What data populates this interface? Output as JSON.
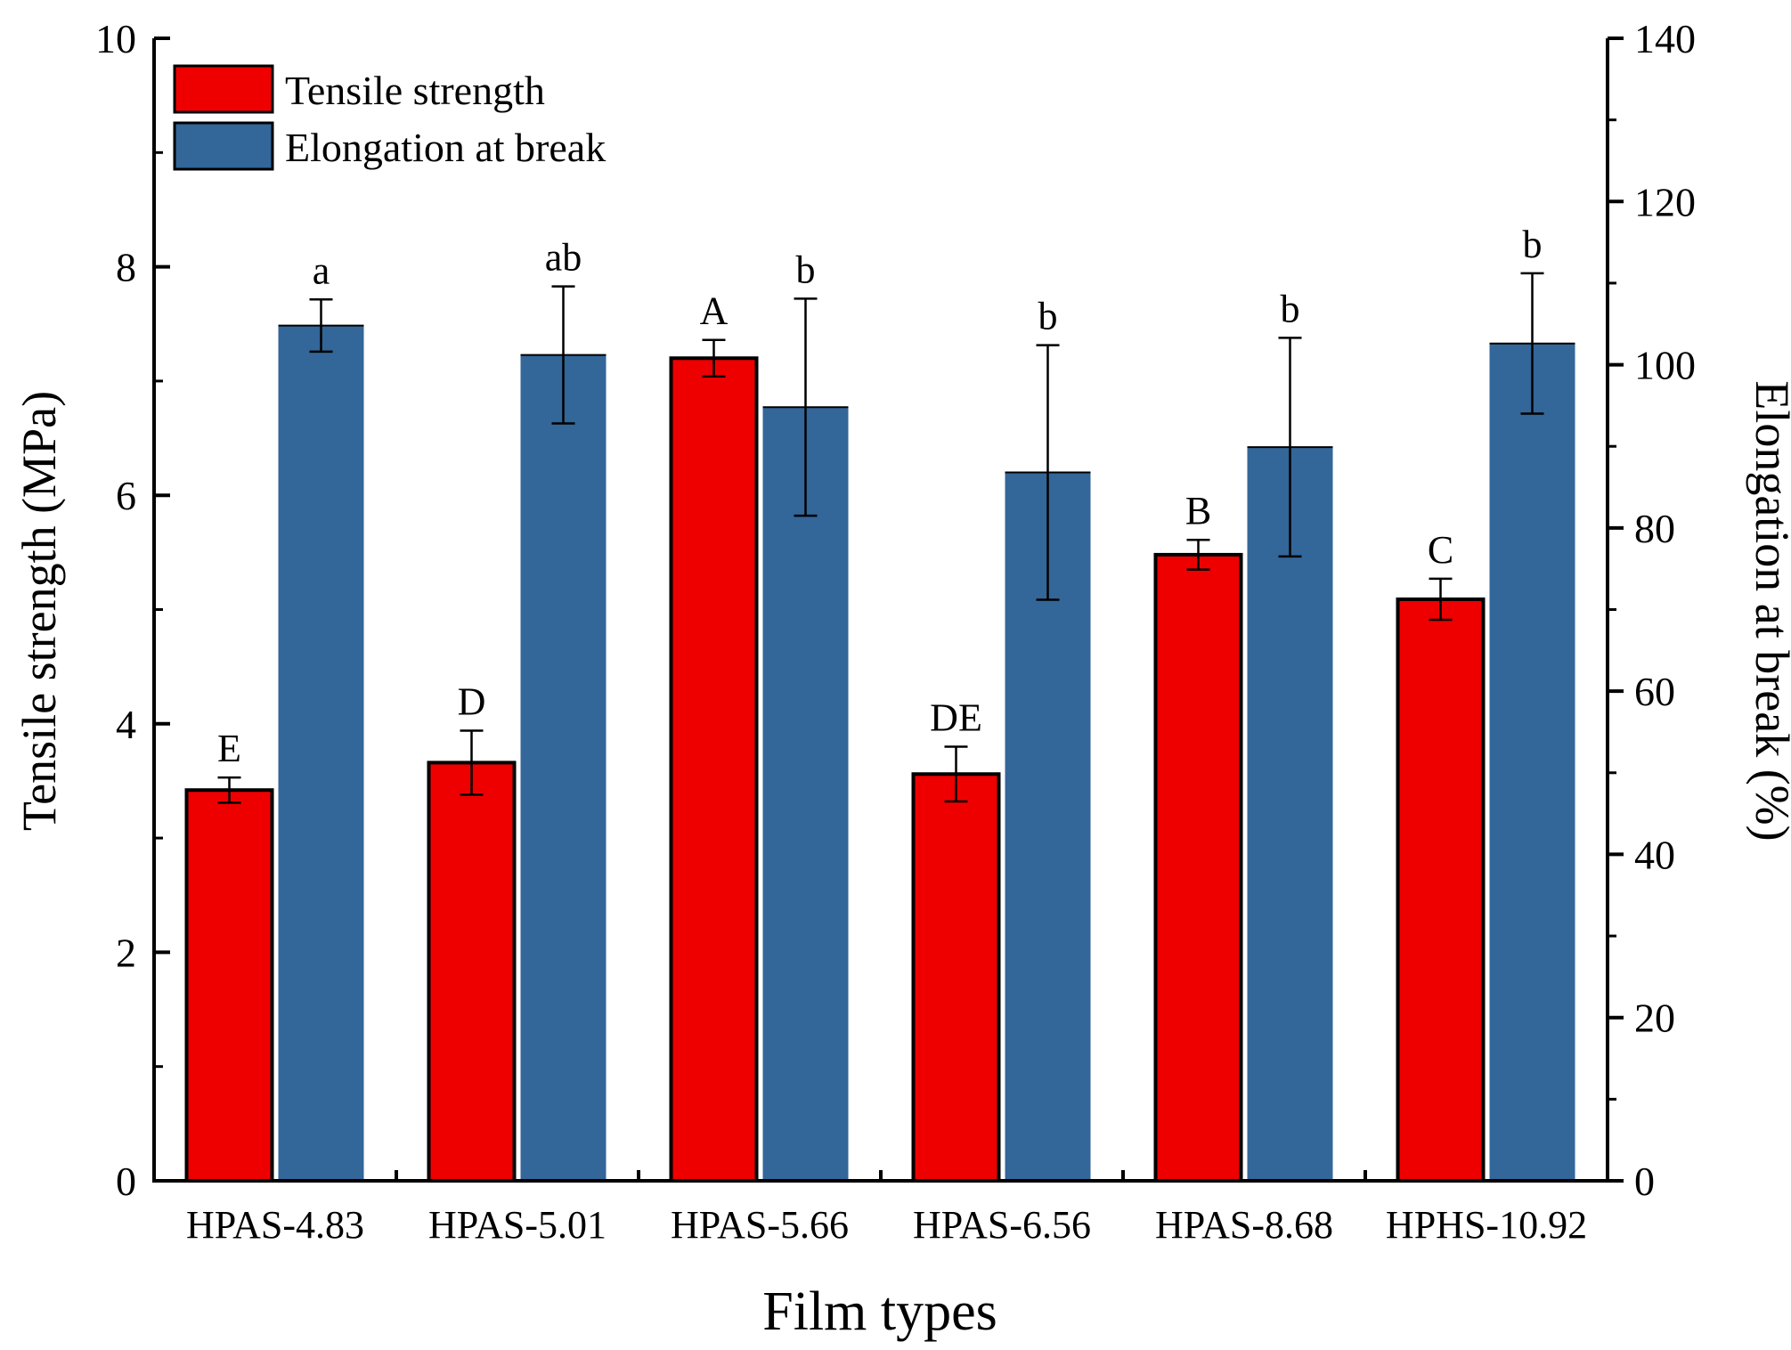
{
  "chart_data": {
    "type": "bar",
    "xlabel": "Film types",
    "ylabel_left": "Tensile strength (MPa)",
    "ylabel_right": "Elongation at break (%)",
    "ylim_left": [
      0,
      10
    ],
    "ylim_right": [
      0,
      140
    ],
    "yticks_left": [
      0,
      2,
      4,
      6,
      8,
      10
    ],
    "yticks_right": [
      0,
      20,
      40,
      60,
      80,
      100,
      120,
      140
    ],
    "categories": [
      "HPAS-4.83",
      "HPAS-5.01",
      "HPAS-5.66",
      "HPAS-6.56",
      "HPAS-8.68",
      "HPHS-10.92"
    ],
    "legend_position": "top-left",
    "series": [
      {
        "name": "Tensile strength",
        "axis": "left",
        "color": "#ee0000",
        "values": [
          3.42,
          3.66,
          7.2,
          3.56,
          5.48,
          5.09
        ],
        "errors": [
          0.11,
          0.28,
          0.16,
          0.24,
          0.13,
          0.18
        ],
        "significance": [
          "E",
          "D",
          "A",
          "DE",
          "B",
          "C"
        ]
      },
      {
        "name": "Elongation at break",
        "axis": "right",
        "color": "#336699",
        "values": [
          104.8,
          101.2,
          94.8,
          86.8,
          89.9,
          102.6
        ],
        "errors": [
          3.2,
          8.4,
          13.3,
          15.6,
          13.4,
          8.6
        ],
        "significance": [
          "a",
          "ab",
          "b",
          "b",
          "b",
          "b"
        ]
      }
    ]
  }
}
